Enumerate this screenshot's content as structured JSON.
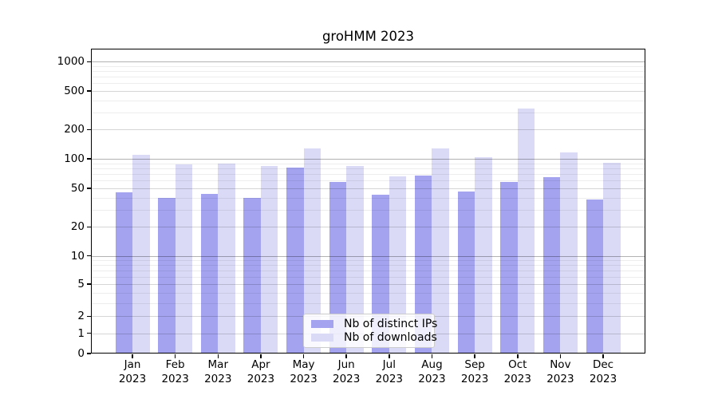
{
  "figure": {
    "background": "#ffffff"
  },
  "chart_data": {
    "type": "bar",
    "title": "groHMM 2023",
    "categories": [
      "Jan 2023",
      "Feb 2023",
      "Mar 2023",
      "Apr 2023",
      "May 2023",
      "Jun 2023",
      "Jul 2023",
      "Aug 2023",
      "Sep 2023",
      "Oct 2023",
      "Nov 2023",
      "Dec 2023"
    ],
    "x": {
      "months": [
        "Jan",
        "Feb",
        "Mar",
        "Apr",
        "May",
        "Jun",
        "Jul",
        "Aug",
        "Sep",
        "Oct",
        "Nov",
        "Dec"
      ],
      "year": "2023"
    },
    "series": [
      {
        "name": "Nb of distinct IPs",
        "color": "#a3a3f0",
        "values": [
          45,
          40,
          44,
          40,
          82,
          58,
          43,
          68,
          46,
          58,
          65,
          38
        ]
      },
      {
        "name": "Nb of downloads",
        "color": "#dadaf7",
        "values": [
          110,
          88,
          90,
          84,
          128,
          84,
          66,
          128,
          105,
          330,
          117,
          91
        ]
      }
    ],
    "y_axis": {
      "scale": "asinh",
      "tick_values": [
        0,
        1,
        2,
        5,
        10,
        20,
        50,
        100,
        200,
        500,
        1000
      ],
      "max": 1360
    },
    "grid": true,
    "legend_position": "lower center",
    "colors": {
      "spine": "#000000",
      "grid_major": "#b0b0b0",
      "grid_minor": "#ececec"
    }
  }
}
